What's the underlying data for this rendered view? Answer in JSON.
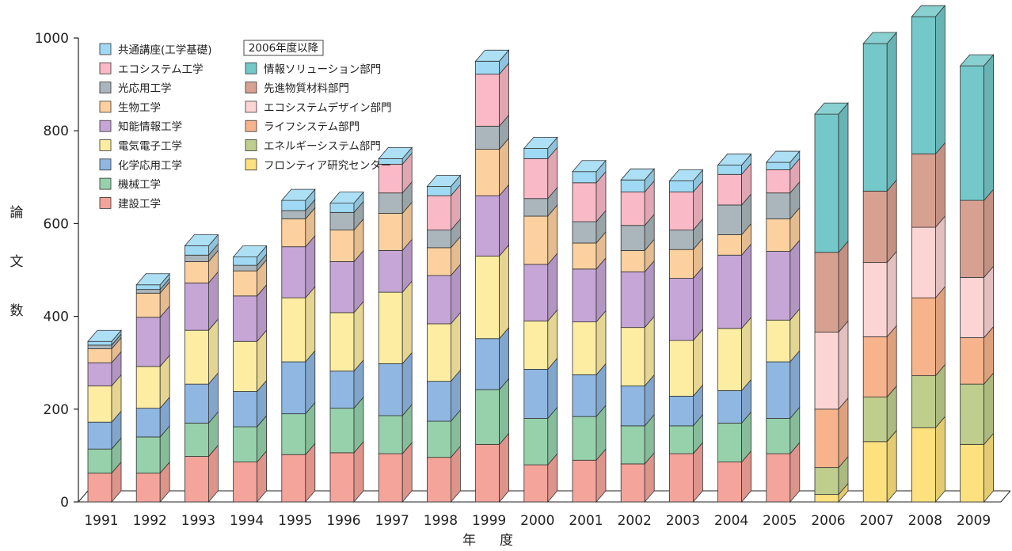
{
  "chart_data": {
    "type": "bar",
    "stacked": true,
    "style": "3d",
    "ylabel": "論文数",
    "xlabel": "年度",
    "ylim": [
      0,
      1000
    ],
    "yticks": [
      0,
      200,
      400,
      600,
      800,
      1000
    ],
    "grid": false,
    "legend": "top-left",
    "legend_note": "2006年度以降",
    "categories": [
      "1991",
      "1992",
      "1993",
      "1994",
      "1995",
      "1996",
      "1997",
      "1998",
      "1999",
      "2000",
      "2001",
      "2002",
      "2003",
      "2004",
      "2005",
      "2006",
      "2007",
      "2008",
      "2009"
    ],
    "series": [
      {
        "name": "建設工学",
        "color": "#f4a49a",
        "values": [
          62,
          62,
          98,
          86,
          102,
          106,
          104,
          96,
          124,
          80,
          90,
          82,
          104,
          86,
          104,
          0,
          0,
          0,
          0
        ]
      },
      {
        "name": "機械工学",
        "color": "#96d1ab",
        "values": [
          52,
          78,
          72,
          76,
          88,
          96,
          82,
          78,
          118,
          100,
          94,
          82,
          60,
          84,
          76,
          0,
          0,
          0,
          0
        ]
      },
      {
        "name": "化学応用工学",
        "color": "#8fb7e1",
        "values": [
          58,
          62,
          84,
          76,
          112,
          80,
          112,
          86,
          110,
          106,
          90,
          86,
          64,
          70,
          122,
          0,
          0,
          0,
          0
        ]
      },
      {
        "name": "電気電子工学",
        "color": "#fdeda3",
        "values": [
          78,
          90,
          116,
          108,
          138,
          126,
          154,
          124,
          178,
          104,
          114,
          126,
          120,
          134,
          90,
          0,
          0,
          0,
          0
        ]
      },
      {
        "name": "知能情報工学",
        "color": "#c6a6d6",
        "values": [
          50,
          106,
          102,
          98,
          110,
          110,
          90,
          104,
          130,
          122,
          114,
          120,
          134,
          158,
          148,
          0,
          0,
          0,
          0
        ]
      },
      {
        "name": "生物工学",
        "color": "#fdd19f",
        "values": [
          30,
          52,
          46,
          54,
          60,
          68,
          80,
          60,
          100,
          104,
          56,
          46,
          62,
          44,
          70,
          0,
          0,
          0,
          0
        ]
      },
      {
        "name": "光応用工学",
        "color": "#aab6bb",
        "values": [
          8,
          8,
          14,
          12,
          18,
          38,
          44,
          38,
          50,
          38,
          46,
          54,
          42,
          64,
          56,
          0,
          0,
          0,
          0
        ]
      },
      {
        "name": "エコシステム工学",
        "color": "#f9b9c6",
        "values": [
          0,
          0,
          0,
          0,
          0,
          0,
          62,
          74,
          112,
          86,
          84,
          72,
          82,
          66,
          50,
          0,
          0,
          0,
          0
        ]
      },
      {
        "name": "共通講座(工学基礎)",
        "color": "#9fd9f3",
        "values": [
          8,
          10,
          20,
          18,
          22,
          20,
          12,
          20,
          28,
          22,
          24,
          26,
          24,
          20,
          16,
          0,
          0,
          0,
          0
        ]
      },
      {
        "name": "フロンティア研究センター",
        "color": "#fde17e",
        "values": [
          0,
          0,
          0,
          0,
          0,
          0,
          0,
          0,
          0,
          0,
          0,
          0,
          0,
          0,
          0,
          16,
          130,
          160,
          124
        ]
      },
      {
        "name": "エネルギーシステム部門",
        "color": "#bfcd8d",
        "values": [
          0,
          0,
          0,
          0,
          0,
          0,
          0,
          0,
          0,
          0,
          0,
          0,
          0,
          0,
          0,
          58,
          96,
          112,
          130
        ]
      },
      {
        "name": "ライフシステム部門",
        "color": "#f7b38b",
        "values": [
          0,
          0,
          0,
          0,
          0,
          0,
          0,
          0,
          0,
          0,
          0,
          0,
          0,
          0,
          0,
          126,
          130,
          168,
          100
        ]
      },
      {
        "name": "エコシステムデザイン部門",
        "color": "#fcd4d4",
        "values": [
          0,
          0,
          0,
          0,
          0,
          0,
          0,
          0,
          0,
          0,
          0,
          0,
          0,
          0,
          0,
          166,
          160,
          152,
          130
        ]
      },
      {
        "name": "先進物質材料部門",
        "color": "#d7a191",
        "values": [
          0,
          0,
          0,
          0,
          0,
          0,
          0,
          0,
          0,
          0,
          0,
          0,
          0,
          0,
          0,
          172,
          154,
          158,
          166
        ]
      },
      {
        "name": "情報ソリューション部門",
        "color": "#74c8c9",
        "values": [
          0,
          0,
          0,
          0,
          0,
          0,
          0,
          0,
          0,
          0,
          0,
          0,
          0,
          0,
          0,
          298,
          318,
          296,
          290
        ]
      }
    ],
    "legend_columns": [
      [
        "共通講座(工学基礎)",
        "エコシステム工学",
        "光応用工学",
        "生物工学",
        "知能情報工学",
        "電気電子工学",
        "化学応用工学",
        "機械工学",
        "建設工学"
      ],
      [
        "情報ソリューション部門",
        "先進物質材料部門",
        "エコシステムデザイン部門",
        "ライフシステム部門",
        "エネルギーシステム部門",
        "フロンティア研究センター"
      ]
    ]
  }
}
